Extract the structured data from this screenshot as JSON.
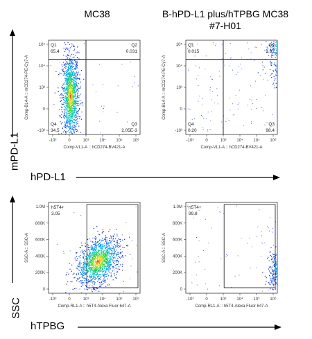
{
  "header": {
    "col1_title": "MC38",
    "col2_title_line1": "B-hPD-L1 plus/hTPBG MC38",
    "col2_title_line2": "#7-H01"
  },
  "axes_big": {
    "row1_y": "mPD-L1",
    "row1_x": "hPD-L1",
    "row2_y": "SSC",
    "row2_x": "hTPBG"
  },
  "chart_data": [
    {
      "type": "scatter",
      "panel": "row1-col1",
      "xlabel": "Comp-VL1-A :: hCD274-BV421-A",
      "ylabel": "Comp-BL4-A :: mCD274-PE-Cy7-A",
      "x_ticks": [
        "-10³",
        "0",
        "10³",
        "10⁴",
        "10⁵",
        "10⁶"
      ],
      "y_ticks": [
        "10⁵",
        "10⁴",
        "10³",
        "0",
        "-10³"
      ],
      "quadrants": {
        "Q1": "65.4",
        "Q2": "0.031",
        "Q3": "2.05E-3",
        "Q4": "34.5"
      },
      "population": {
        "center": [
          0.05,
          0.6
        ],
        "spread": [
          0.25,
          1.0
        ],
        "shape": "blob"
      }
    },
    {
      "type": "scatter",
      "panel": "row1-col2",
      "xlabel": "Comp-VL1-A :: hCD274-BV421-A",
      "ylabel": "Comp-BL4-A :: mCD274-PE-Cy7-A",
      "x_ticks": [
        "-10³",
        "0",
        "10³",
        "10⁴",
        "10⁵",
        "10⁶"
      ],
      "y_ticks": [
        "10⁵",
        "10⁴",
        "10³",
        "0",
        "-10³"
      ],
      "quadrants": {
        "Q1": "0.015",
        "Q2": "1.37",
        "Q3": "98.4",
        "Q4": "0.20"
      },
      "population": {
        "center": [
          4.9,
          2.9
        ],
        "spread": [
          0.55,
          0.8
        ],
        "shape": "blob"
      }
    },
    {
      "type": "scatter",
      "panel": "row2-col1",
      "xlabel": "Comp-RL1-A :: h5T4-Alexa Fluor  647-A",
      "ylabel": "SSC-A :: SSC-A",
      "x_ticks": [
        "-10³",
        "0",
        "10³",
        "10⁴",
        "10⁵",
        "10⁶"
      ],
      "y_ticks": [
        "1.0M",
        "800K",
        "600K",
        "400K",
        "200K",
        "0"
      ],
      "gate": {
        "name": "h5T4+",
        "value": "3.05"
      },
      "population": {
        "center": [
          1.7,
          340
        ],
        "spread": [
          0.6,
          140
        ],
        "shape": "streak"
      }
    },
    {
      "type": "scatter",
      "panel": "row2-col2",
      "xlabel": "Comp-RL1-A :: h5T4-Alexa Fluor  647-A",
      "ylabel": "SSC-A :: SSC-A",
      "x_ticks": [
        "-10³",
        "0",
        "10³",
        "10⁴",
        "10⁵",
        "10⁶"
      ],
      "y_ticks": [
        "1.0M",
        "800K",
        "600K",
        "400K",
        "200K",
        "0"
      ],
      "gate": {
        "name": "h5T4+",
        "value": "99.8"
      },
      "population": {
        "center": [
          4.8,
          340
        ],
        "spread": [
          0.4,
          140
        ],
        "shape": "streak"
      }
    }
  ]
}
